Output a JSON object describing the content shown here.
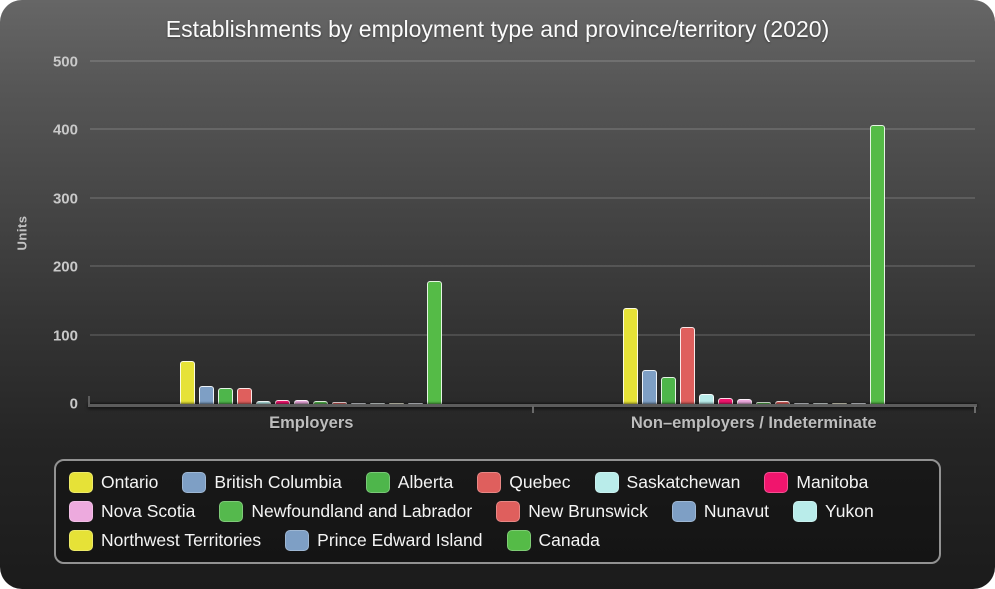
{
  "title": "Establishments by employment type and province/territory (2020)",
  "chart_data": {
    "type": "bar",
    "title": "Establishments by employment type and province/territory (2020)",
    "xlabel": "",
    "ylabel": "Units",
    "ylim": [
      0,
      500
    ],
    "yticks": [
      0,
      100,
      200,
      300,
      400,
      500
    ],
    "grid": true,
    "legend_position": "bottom",
    "categories": [
      "Employers",
      "Non–employers / Indeterminate"
    ],
    "series": [
      {
        "name": "Ontario",
        "color": "#e6e237",
        "values": [
          63,
          140
        ]
      },
      {
        "name": "British Columbia",
        "color": "#7e9fc5",
        "values": [
          27,
          50
        ]
      },
      {
        "name": "Alberta",
        "color": "#4eb64b",
        "values": [
          24,
          39
        ]
      },
      {
        "name": "Quebec",
        "color": "#df5f5d",
        "values": [
          24,
          112
        ]
      },
      {
        "name": "Saskatchewan",
        "color": "#b9ecea",
        "values": [
          5,
          15
        ]
      },
      {
        "name": "Manitoba",
        "color": "#f0156d",
        "values": [
          6,
          9
        ]
      },
      {
        "name": "Nova Scotia",
        "color": "#edaade",
        "values": [
          6,
          8
        ]
      },
      {
        "name": "Newfoundland and Labrador",
        "color": "#55b94d",
        "values": [
          4,
          3
        ]
      },
      {
        "name": "New Brunswick",
        "color": "#df5f5d",
        "values": [
          3,
          5
        ]
      },
      {
        "name": "Nunavut",
        "color": "#7e9fc5",
        "values": [
          1,
          1
        ]
      },
      {
        "name": "Yukon",
        "color": "#b9ecea",
        "values": [
          1,
          1
        ]
      },
      {
        "name": "Northwest Territories",
        "color": "#e6e237",
        "values": [
          1,
          1
        ]
      },
      {
        "name": "Prince Edward Island",
        "color": "#7e9fc5",
        "values": [
          1,
          1
        ]
      },
      {
        "name": "Canada",
        "color": "#55bb47",
        "values": [
          180,
          408
        ]
      }
    ]
  },
  "colors": {
    "widget_bg_top": "#666666",
    "widget_bg_bottom": "#1b1b1b",
    "title_text": "#fbfbfb",
    "axis_text": "#c9c9c9",
    "gridline": "rgba(255,255,255,0.13)",
    "axis_line": "#5c5c5c",
    "legend_border": "#929292",
    "legend_text": "#f4f4f4"
  }
}
